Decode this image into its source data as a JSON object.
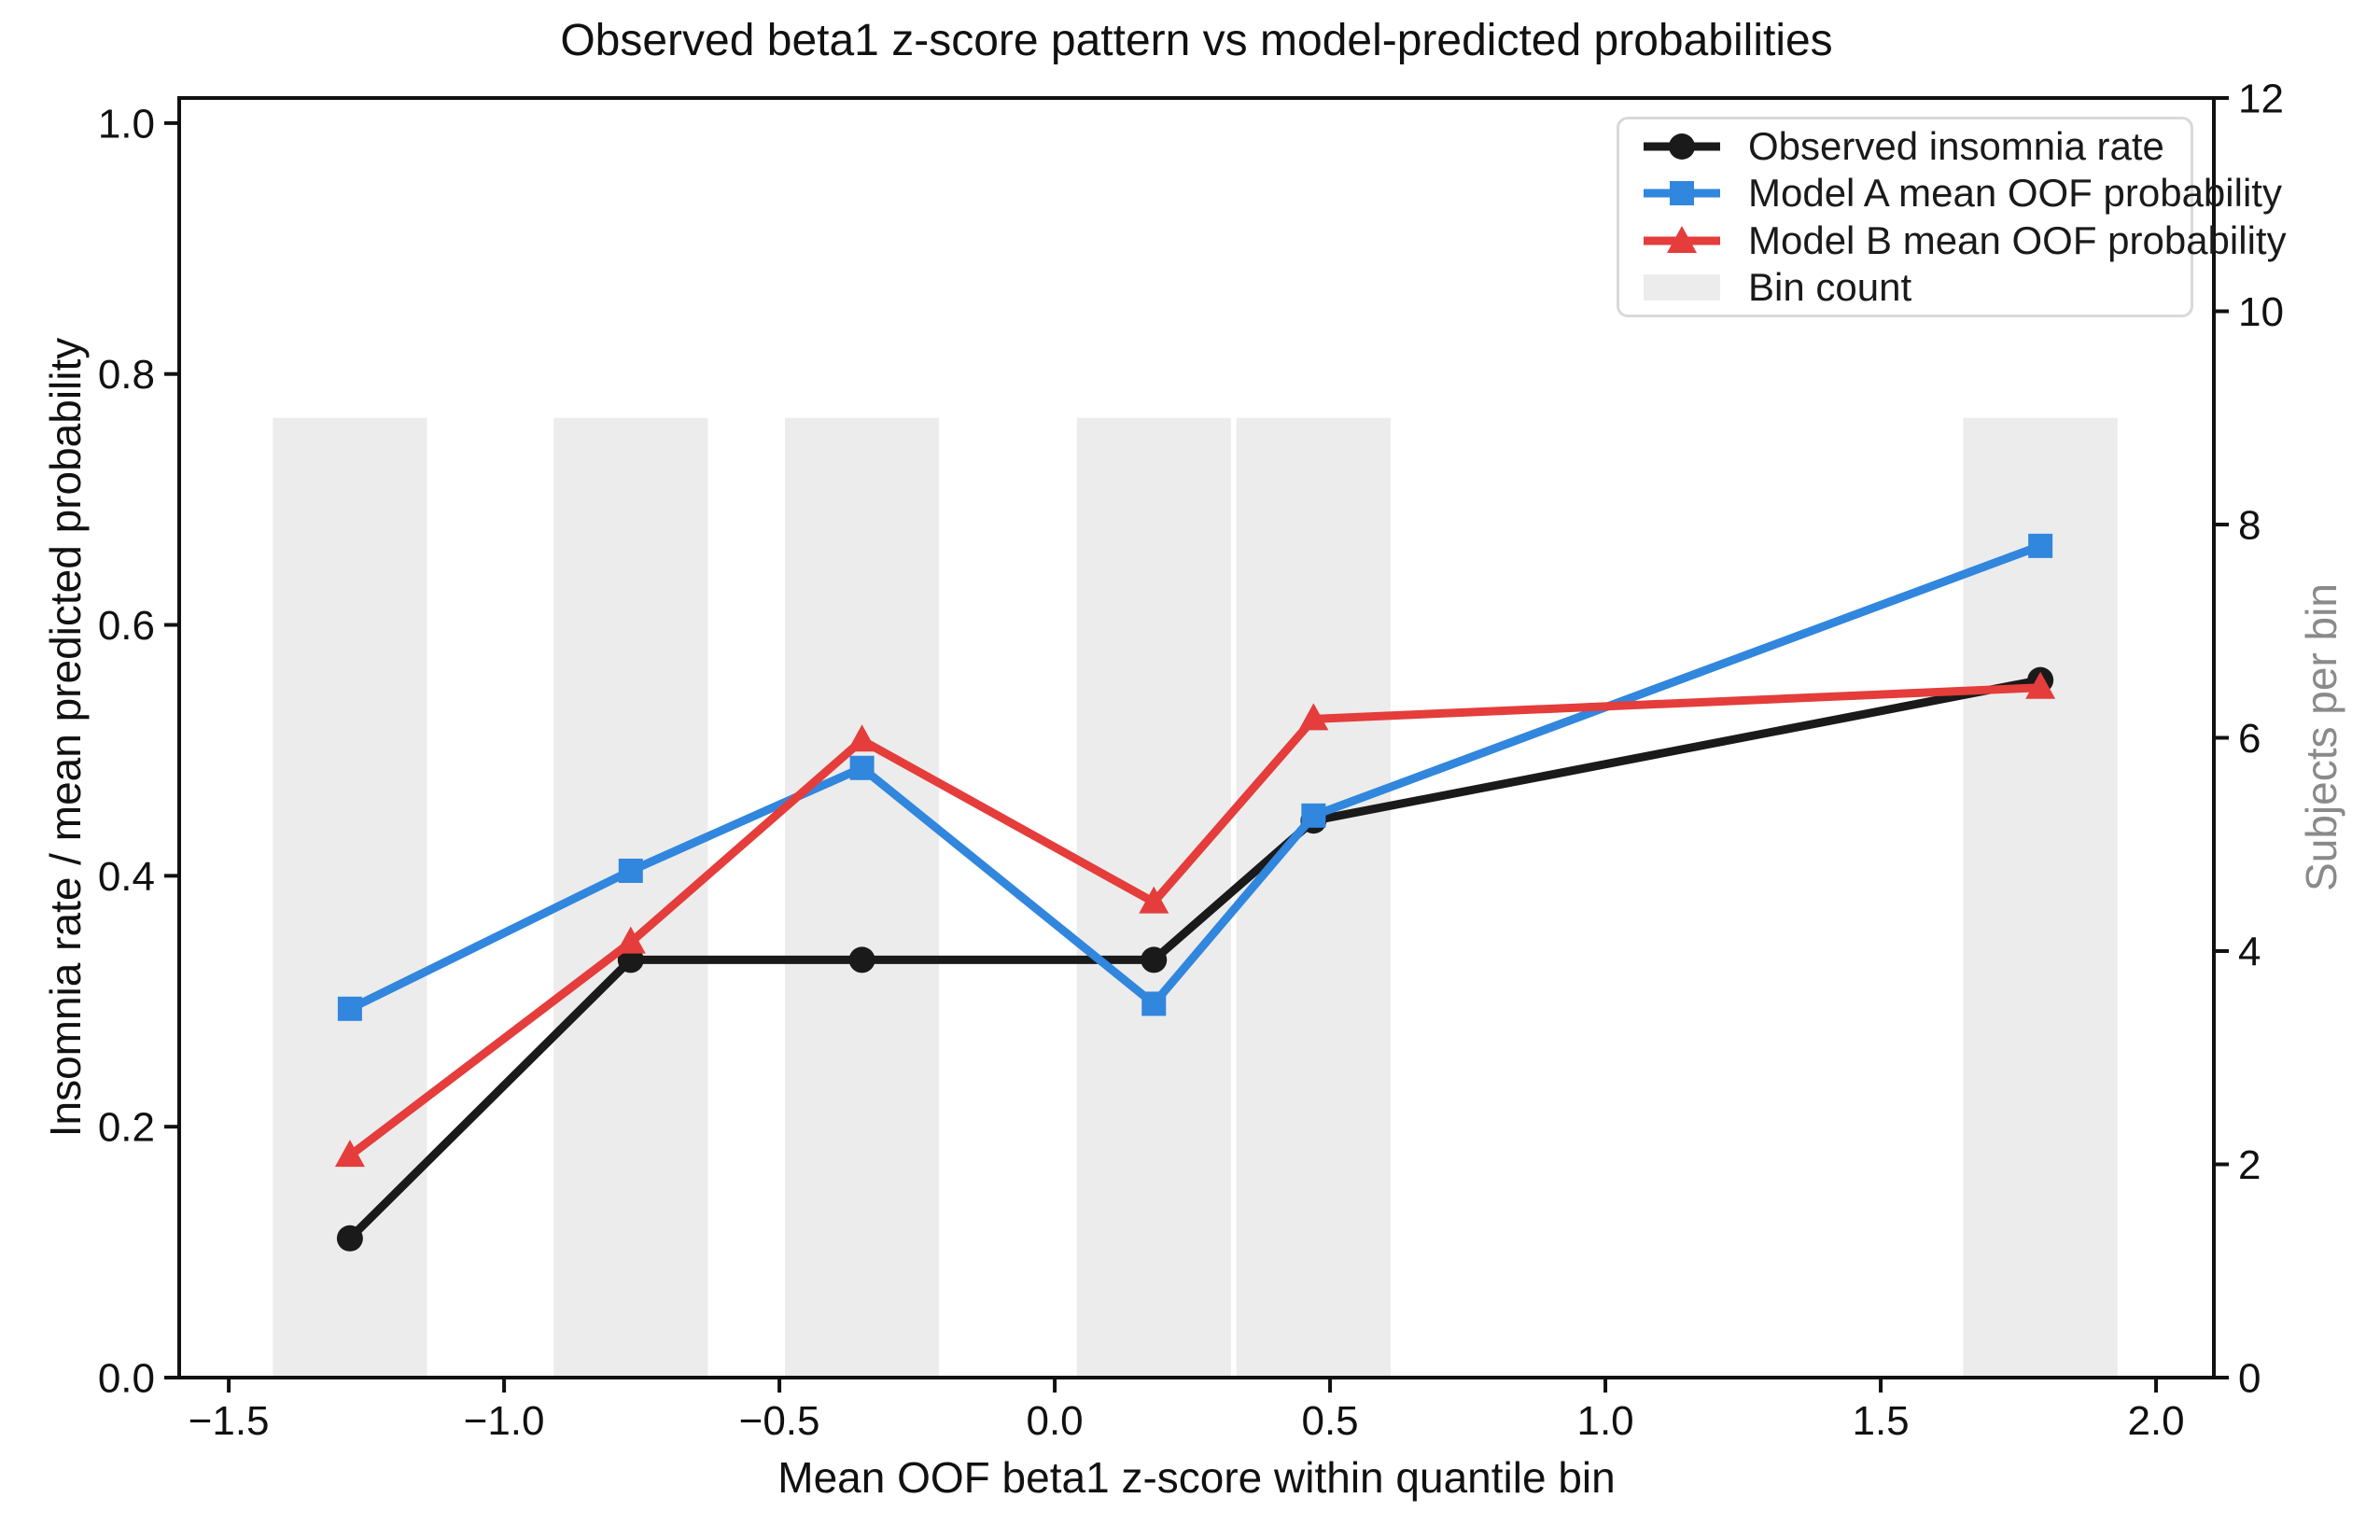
{
  "chart_data": {
    "type": "line",
    "title": "Observed beta1 z-score pattern vs model-predicted probabilities",
    "xlabel": "Mean OOF beta1 z-score within quantile bin",
    "ylabel_left": "Insomnia rate / mean predicted probability",
    "ylabel_right": "Subjects per bin",
    "xlim": [
      -1.59,
      2.105
    ],
    "ylim_left": [
      0,
      1.02
    ],
    "ylim_right": [
      0,
      12
    ],
    "x_ticks": {
      "values": [
        -1.5,
        -1.0,
        -0.5,
        0.0,
        0.5,
        1.0,
        1.5,
        2.0
      ],
      "labels": [
        "−1.5",
        "−1.0",
        "−0.5",
        "0.0",
        "0.5",
        "1.0",
        "1.5",
        "2.0"
      ]
    },
    "y_ticks_left": {
      "values": [
        0.0,
        0.2,
        0.4,
        0.6,
        0.8,
        1.0
      ],
      "labels": [
        "0.0",
        "0.2",
        "0.4",
        "0.6",
        "0.8",
        "1.0"
      ]
    },
    "y_ticks_right": {
      "values": [
        0,
        2,
        4,
        6,
        8,
        10,
        12
      ],
      "labels": [
        "0",
        "2",
        "4",
        "6",
        "8",
        "10",
        "12"
      ]
    },
    "x": [
      -1.28,
      -0.77,
      -0.35,
      0.18,
      0.47,
      1.79
    ],
    "series": [
      {
        "name": "Observed insomnia rate",
        "color": "#1a1a1a",
        "marker": "circle",
        "values": [
          0.111,
          0.333,
          0.333,
          0.333,
          0.444,
          0.556
        ]
      },
      {
        "name": "Model A mean OOF probability",
        "color": "#3186dd",
        "marker": "square",
        "values": [
          0.294,
          0.404,
          0.486,
          0.298,
          0.448,
          0.663
        ]
      },
      {
        "name": "Model B mean OOF probability",
        "color": "#e43d3b",
        "marker": "triangle",
        "values": [
          0.177,
          0.347,
          0.508,
          0.379,
          0.525,
          0.55
        ]
      }
    ],
    "bars": {
      "name": "Bin count",
      "color": "#ececec",
      "width": 0.28,
      "centers": [
        -1.28,
        -0.77,
        -0.35,
        0.18,
        0.47,
        1.79
      ],
      "counts": [
        9,
        9,
        9,
        9,
        9,
        9
      ]
    },
    "legend": {
      "position": "upper right",
      "entries": [
        "Observed insomnia rate",
        "Model A mean OOF probability",
        "Model B mean OOF probability",
        "Bin count"
      ]
    },
    "grid": false
  }
}
